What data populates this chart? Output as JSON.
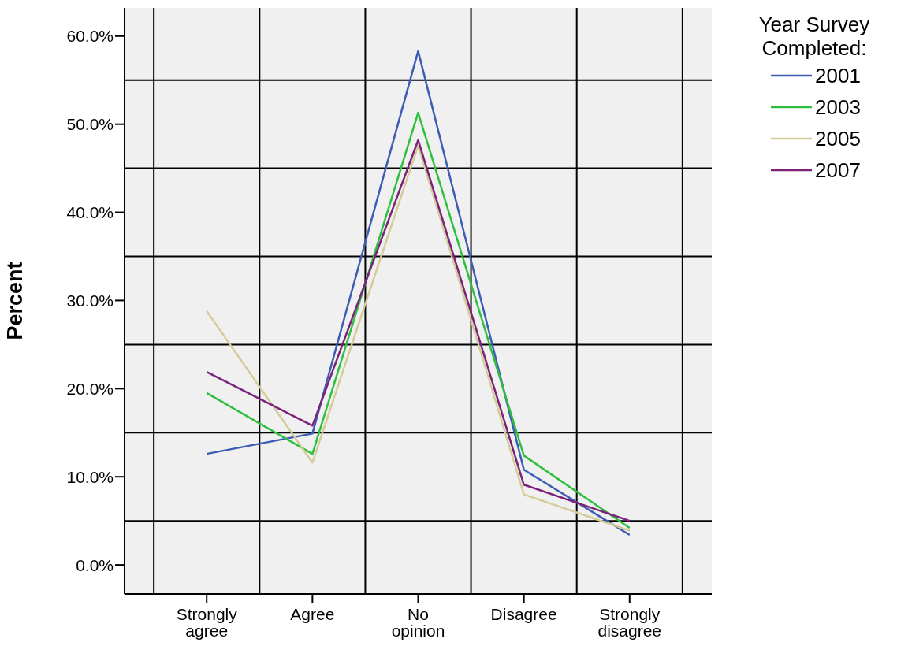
{
  "chart_data": {
    "type": "line",
    "ylabel": "Percent",
    "legend_title": "Year Survey Completed:",
    "legend": "top right",
    "grid": true,
    "categories": [
      "Strongly agree",
      "Agree",
      "No opinion",
      "Disagree",
      "Strongly disagree"
    ],
    "series": [
      {
        "name": "2001",
        "color": "#3e5bb5",
        "values": [
          12.6,
          14.9,
          58.3,
          10.8,
          3.4
        ]
      },
      {
        "name": "2003",
        "color": "#2fbf3f",
        "values": [
          19.5,
          12.6,
          51.3,
          12.4,
          4.2
        ]
      },
      {
        "name": "2005",
        "color": "#d4cc98",
        "values": [
          28.8,
          11.6,
          47.6,
          8.0,
          3.9
        ]
      },
      {
        "name": "2007",
        "color": "#7a2378",
        "values": [
          21.9,
          15.8,
          48.2,
          9.1,
          5.0
        ]
      }
    ],
    "ylim": [
      -3.3,
      63.2
    ],
    "yticks": [
      {
        "value": 0,
        "label": "0.0%"
      },
      {
        "value": 5,
        "label": null
      },
      {
        "value": 10,
        "label": "10.0%"
      },
      {
        "value": 15,
        "label": null
      },
      {
        "value": 20,
        "label": "20.0%"
      },
      {
        "value": 25,
        "label": null
      },
      {
        "value": 30,
        "label": "30.0%"
      },
      {
        "value": 35,
        "label": null
      },
      {
        "value": 40,
        "label": "40.0%"
      },
      {
        "value": 45,
        "label": null
      },
      {
        "value": 50,
        "label": "50.0%"
      },
      {
        "value": 55,
        "label": null
      },
      {
        "value": 60,
        "label": "60.0%"
      }
    ]
  }
}
